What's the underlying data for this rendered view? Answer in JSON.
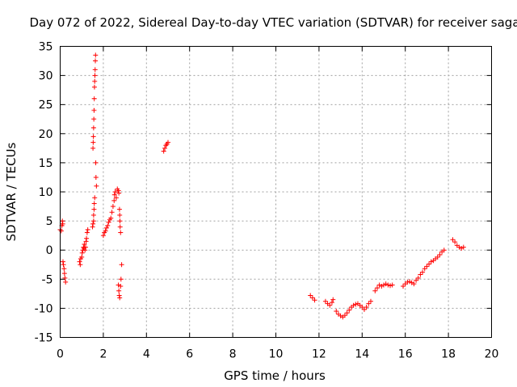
{
  "chart_data": {
    "type": "scatter",
    "title": "Day 072 of 2022, Sidereal Day-to-day VTEC variation (SDTVAR) for receiver saga",
    "xlabel": "GPS time / hours",
    "ylabel": "SDTVAR / TECUs",
    "xlim": [
      0,
      20
    ],
    "ylim": [
      -15,
      35
    ],
    "xticks": [
      0,
      2,
      4,
      6,
      8,
      10,
      12,
      14,
      16,
      18,
      20
    ],
    "yticks": [
      -15,
      -10,
      -5,
      0,
      5,
      10,
      15,
      20,
      25,
      30,
      35
    ],
    "grid": true,
    "marker": "+",
    "series": [
      {
        "name": "SDTVAR",
        "color": "#ff0000",
        "points": [
          [
            0.0,
            3.5
          ],
          [
            0.05,
            3.3
          ],
          [
            0.08,
            4.2
          ],
          [
            0.1,
            5.0
          ],
          [
            0.12,
            4.5
          ],
          [
            0.13,
            -2.0
          ],
          [
            0.15,
            -2.5
          ],
          [
            0.18,
            -3.2
          ],
          [
            0.2,
            -4.0
          ],
          [
            0.22,
            -4.8
          ],
          [
            0.25,
            -5.5
          ],
          [
            0.9,
            -2.0
          ],
          [
            0.93,
            -2.5
          ],
          [
            0.95,
            -1.5
          ],
          [
            1.0,
            -1.2
          ],
          [
            1.02,
            -0.5
          ],
          [
            1.05,
            0.0
          ],
          [
            1.08,
            0.5
          ],
          [
            1.1,
            0.3
          ],
          [
            1.12,
            1.0
          ],
          [
            1.15,
            0.0
          ],
          [
            1.18,
            0.5
          ],
          [
            1.2,
            1.5
          ],
          [
            1.22,
            2.0
          ],
          [
            1.25,
            3.0
          ],
          [
            1.28,
            3.5
          ],
          [
            1.5,
            4.0
          ],
          [
            1.52,
            4.5
          ],
          [
            1.55,
            5.0
          ],
          [
            1.55,
            6.0
          ],
          [
            1.57,
            7.0
          ],
          [
            1.58,
            8.0
          ],
          [
            1.6,
            9.0
          ],
          [
            1.52,
            17.5
          ],
          [
            1.53,
            18.5
          ],
          [
            1.54,
            19.5
          ],
          [
            1.55,
            21.0
          ],
          [
            1.56,
            22.5
          ],
          [
            1.57,
            24.0
          ],
          [
            1.58,
            26.0
          ],
          [
            1.59,
            28.0
          ],
          [
            1.6,
            29.0
          ],
          [
            1.61,
            30.0
          ],
          [
            1.62,
            31.0
          ],
          [
            1.63,
            32.5
          ],
          [
            1.64,
            33.5
          ],
          [
            1.65,
            15.0
          ],
          [
            1.66,
            12.5
          ],
          [
            1.68,
            11.0
          ],
          [
            2.0,
            2.5
          ],
          [
            2.05,
            3.0
          ],
          [
            2.1,
            3.3
          ],
          [
            2.15,
            3.8
          ],
          [
            2.2,
            4.2
          ],
          [
            2.25,
            4.8
          ],
          [
            2.3,
            5.2
          ],
          [
            2.35,
            5.5
          ],
          [
            2.4,
            6.5
          ],
          [
            2.45,
            7.5
          ],
          [
            2.5,
            8.5
          ],
          [
            2.52,
            9.5
          ],
          [
            2.55,
            10.0
          ],
          [
            2.6,
            9.0
          ],
          [
            2.65,
            10.5
          ],
          [
            2.7,
            10.2
          ],
          [
            2.72,
            9.8
          ],
          [
            2.75,
            7.0
          ],
          [
            2.76,
            6.0
          ],
          [
            2.77,
            5.0
          ],
          [
            2.78,
            4.0
          ],
          [
            2.8,
            3.0
          ],
          [
            2.7,
            -6.0
          ],
          [
            2.72,
            -7.0
          ],
          [
            2.74,
            -7.8
          ],
          [
            2.76,
            -8.2
          ],
          [
            2.8,
            -6.2
          ],
          [
            2.82,
            -5.0
          ],
          [
            2.85,
            -2.5
          ],
          [
            4.8,
            17.0
          ],
          [
            4.85,
            17.5
          ],
          [
            4.9,
            18.0
          ],
          [
            4.95,
            18.2
          ],
          [
            5.0,
            18.5
          ],
          [
            11.6,
            -7.8
          ],
          [
            11.7,
            -8.2
          ],
          [
            11.8,
            -8.6
          ],
          [
            12.3,
            -8.8
          ],
          [
            12.4,
            -9.2
          ],
          [
            12.5,
            -9.5
          ],
          [
            12.6,
            -9.0
          ],
          [
            12.65,
            -8.5
          ],
          [
            12.8,
            -10.5
          ],
          [
            12.9,
            -11.0
          ],
          [
            13.0,
            -11.3
          ],
          [
            13.1,
            -11.5
          ],
          [
            13.2,
            -11.2
          ],
          [
            13.3,
            -10.8
          ],
          [
            13.4,
            -10.3
          ],
          [
            13.5,
            -9.8
          ],
          [
            13.6,
            -9.5
          ],
          [
            13.7,
            -9.3
          ],
          [
            13.8,
            -9.2
          ],
          [
            13.9,
            -9.5
          ],
          [
            14.0,
            -9.8
          ],
          [
            14.1,
            -10.2
          ],
          [
            14.2,
            -9.8
          ],
          [
            14.3,
            -9.2
          ],
          [
            14.4,
            -8.8
          ],
          [
            14.6,
            -7.0
          ],
          [
            14.7,
            -6.5
          ],
          [
            14.8,
            -6.0
          ],
          [
            14.9,
            -6.2
          ],
          [
            15.0,
            -6.0
          ],
          [
            15.1,
            -5.8
          ],
          [
            15.2,
            -6.0
          ],
          [
            15.3,
            -6.1
          ],
          [
            15.4,
            -6.0
          ],
          [
            15.9,
            -6.2
          ],
          [
            16.0,
            -5.8
          ],
          [
            16.1,
            -5.5
          ],
          [
            16.2,
            -5.4
          ],
          [
            16.3,
            -5.6
          ],
          [
            16.4,
            -5.8
          ],
          [
            16.5,
            -5.2
          ],
          [
            16.6,
            -4.8
          ],
          [
            16.7,
            -4.2
          ],
          [
            16.8,
            -3.8
          ],
          [
            16.9,
            -3.2
          ],
          [
            17.0,
            -2.8
          ],
          [
            17.1,
            -2.4
          ],
          [
            17.2,
            -2.0
          ],
          [
            17.3,
            -1.8
          ],
          [
            17.4,
            -1.5
          ],
          [
            17.5,
            -1.2
          ],
          [
            17.6,
            -0.8
          ],
          [
            17.7,
            -0.3
          ],
          [
            17.8,
            0.0
          ],
          [
            18.2,
            1.8
          ],
          [
            18.3,
            1.4
          ],
          [
            18.4,
            0.8
          ],
          [
            18.5,
            0.5
          ],
          [
            18.6,
            0.3
          ],
          [
            18.7,
            0.5
          ]
        ]
      }
    ]
  }
}
